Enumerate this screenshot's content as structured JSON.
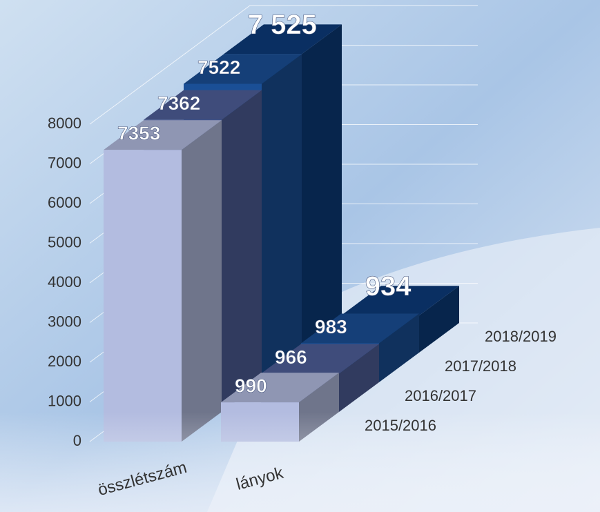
{
  "chart_data": {
    "type": "bar3d",
    "categories": [
      "összlétszám",
      "lányok"
    ],
    "series": [
      {
        "name": "2015/2016",
        "color": "#b3bce0",
        "values": [
          7353,
          990
        ]
      },
      {
        "name": "2016/2017",
        "color": "#4f5f9a",
        "values": [
          7362,
          966
        ]
      },
      {
        "name": "2017/2018",
        "color": "#1a4f96",
        "values": [
          7522,
          983
        ]
      },
      {
        "name": "2018/2019",
        "color": "#0c3b7a",
        "values": [
          7525,
          934
        ],
        "value_labels": [
          "7 525",
          "934"
        ]
      }
    ],
    "ylim": [
      0,
      8000
    ],
    "yticks": [
      0,
      1000,
      2000,
      3000,
      4000,
      5000,
      6000,
      7000,
      8000
    ],
    "grid": true
  }
}
